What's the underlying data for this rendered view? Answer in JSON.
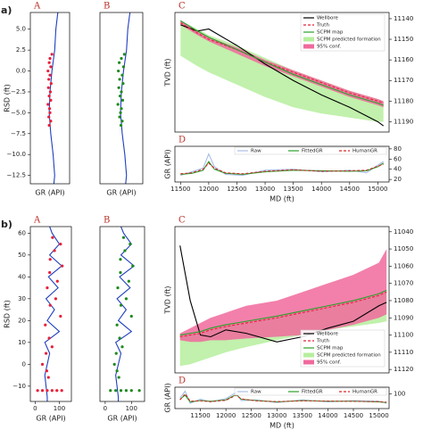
{
  "chart_data": [
    {
      "type": "line",
      "group_label": "a)",
      "panel": "A",
      "xlabel": "GR (API)",
      "ylabel": "RSD (ft)",
      "xlim": [
        0,
        100
      ],
      "ylim": [
        -13.5,
        7
      ],
      "yticks": [
        {
          "value": -12.5,
          "label": "−12.5"
        },
        {
          "value": -10,
          "label": "−10.0"
        },
        {
          "value": -7.5,
          "label": "−7.5"
        },
        {
          "value": -5,
          "label": "−5.0"
        },
        {
          "value": -2.5,
          "label": "−2.5"
        },
        {
          "value": 0,
          "label": "0.0"
        },
        {
          "value": 2.5,
          "label": "2.5"
        },
        {
          "value": 5,
          "label": "5.0"
        }
      ],
      "series": [
        {
          "kind": "line",
          "color": "#1f3fbf",
          "x": [
            70,
            65,
            62,
            55,
            50,
            48,
            52,
            58,
            62,
            60
          ],
          "values": [
            7,
            5,
            2.5,
            0,
            -2.5,
            -5,
            -7.5,
            -10,
            -12.5,
            -13.5
          ]
        },
        {
          "kind": "points",
          "color": "#e8203a",
          "x": [
            55,
            50,
            48,
            52,
            45,
            50,
            47,
            53,
            46,
            51,
            48,
            52,
            45,
            49,
            50,
            47,
            52,
            48
          ],
          "values": [
            2,
            1.5,
            1,
            0.5,
            0,
            -0.5,
            -1,
            -1.5,
            -2,
            -2.5,
            -3,
            -3.5,
            -4,
            -4.5,
            -5,
            -5.5,
            -6,
            -6.5
          ]
        }
      ]
    },
    {
      "type": "line",
      "panel": "B",
      "xlabel": "GR (API)",
      "xlim": [
        0,
        100
      ],
      "ylim": [
        -13.5,
        7
      ],
      "series": [
        {
          "kind": "line",
          "color": "#1f3fbf",
          "x": [
            70,
            65,
            62,
            55,
            50,
            48,
            52,
            58,
            62,
            60
          ],
          "values": [
            7,
            5,
            2.5,
            0,
            -2.5,
            -5,
            -7.5,
            -10,
            -12.5,
            -13.5
          ]
        },
        {
          "kind": "points",
          "color": "#1e8a1e",
          "x": [
            57,
            50,
            45,
            55,
            43,
            52,
            46,
            54,
            44,
            50,
            47,
            53,
            42,
            50,
            48,
            46,
            52,
            49
          ],
          "values": [
            2,
            1.5,
            1,
            0.5,
            0,
            -0.5,
            -1,
            -1.5,
            -2,
            -2.5,
            -3,
            -3.5,
            -4,
            -4.5,
            -5,
            -5.5,
            -6,
            -6.5
          ]
        }
      ]
    },
    {
      "type": "line",
      "panel": "C",
      "ylabel": "TVD (ft)",
      "y_axis_side": "right",
      "y_inverted": true,
      "legend": "upper right",
      "xlim": [
        11400,
        15200
      ],
      "ylim": [
        11137,
        11195
      ],
      "yticks": [
        11140,
        11150,
        11160,
        11170,
        11180,
        11190
      ],
      "x": [
        11500,
        11800,
        12000,
        12500,
        13000,
        13500,
        14000,
        14500,
        15000,
        15100
      ],
      "series": [
        {
          "name": "Wellbore",
          "kind": "line",
          "color": "#000000",
          "values": [
            11143,
            11146,
            11145,
            11153,
            11162,
            11170,
            11177,
            11183,
            11190,
            11192
          ]
        },
        {
          "name": "Truth",
          "kind": "line",
          "dash": true,
          "color": "#e8203a",
          "values": [
            11142,
            11147,
            11150,
            11155,
            11161,
            11166,
            11171,
            11176,
            11180,
            11181
          ]
        },
        {
          "name": "SCPM map",
          "kind": "line",
          "color": "#2ca02c",
          "values": [
            11141,
            11146,
            11149,
            11155,
            11161,
            11167,
            11172,
            11177,
            11181,
            11182
          ]
        },
        {
          "name": "SCPM predicted formation",
          "kind": "band",
          "color": "#b6ef9e",
          "values": [
            11141,
            11145,
            11148,
            11153,
            11159,
            11165,
            11170,
            11175,
            11179,
            11180
          ],
          "lower": [
            11158,
            11163,
            11166,
            11172,
            11178,
            11183,
            11186,
            11188,
            11190,
            11190
          ]
        },
        {
          "name": "95% conf.",
          "kind": "band",
          "color": "#f06a9c",
          "values": [
            11141,
            11146,
            11149,
            11154,
            11160,
            11165,
            11170,
            11175,
            11179,
            11180
          ],
          "lower": [
            11143,
            11148,
            11151,
            11157,
            11163,
            11168,
            11173,
            11178,
            11182,
            11183
          ]
        }
      ]
    },
    {
      "type": "line",
      "panel": "D",
      "ylabel": "GR (API)",
      "xlabel": "MD (ft)",
      "y_axis_side": "right",
      "legend": "upper center",
      "xlim": [
        11400,
        15200
      ],
      "ylim": [
        15,
        85
      ],
      "yticks": [
        20,
        40,
        60,
        80
      ],
      "xticks": [
        11500,
        12000,
        12500,
        13000,
        13500,
        14000,
        14500,
        15000
      ],
      "x": [
        11500,
        11700,
        11900,
        12000,
        12100,
        12300,
        12600,
        13000,
        13500,
        14000,
        14500,
        14800,
        15000,
        15100
      ],
      "series": [
        {
          "name": "Raw",
          "kind": "line",
          "color": "#a9bde9",
          "values": [
            28,
            35,
            42,
            70,
            45,
            30,
            28,
            38,
            40,
            35,
            38,
            33,
            48,
            55
          ]
        },
        {
          "name": "FittedGR",
          "kind": "line",
          "color": "#2ca02c",
          "values": [
            30,
            32,
            38,
            55,
            40,
            32,
            30,
            35,
            38,
            37,
            36,
            37,
            45,
            52
          ]
        },
        {
          "name": "HumanGR",
          "kind": "line",
          "dash": true,
          "color": "#d62728",
          "values": [
            31,
            33,
            40,
            52,
            42,
            33,
            31,
            36,
            39,
            36,
            37,
            38,
            46,
            50
          ]
        }
      ]
    },
    {
      "type": "line",
      "group_label": "b)",
      "panel": "A",
      "xlabel": "GR (API)",
      "ylabel": "RSD (ft)",
      "xlim": [
        -20,
        150
      ],
      "ylim": [
        -17,
        63
      ],
      "xticks": [
        0,
        100
      ],
      "yticks": [
        {
          "value": -10,
          "label": "−10"
        },
        0,
        10,
        20,
        30,
        40,
        50,
        60
      ],
      "series": [
        {
          "kind": "line",
          "color": "#1f3fbf",
          "x": [
            60,
            70,
            100,
            60,
            110,
            55,
            95,
            45,
            80,
            50,
            100,
            40,
            60,
            50,
            40,
            45,
            50,
            50
          ],
          "values": [
            63,
            60,
            55,
            50,
            45,
            40,
            35,
            30,
            25,
            20,
            15,
            10,
            5,
            0,
            -5,
            -10,
            -15,
            -17
          ]
        },
        {
          "kind": "points",
          "color": "#e8203a",
          "x": [
            72,
            105,
            80,
            62,
            112,
            60,
            92,
            50,
            85,
            62,
            105,
            42,
            58,
            70,
            45,
            30,
            48,
            55,
            10,
            30,
            50,
            70,
            90,
            110
          ],
          "values": [
            58,
            55,
            52,
            48,
            45,
            42,
            38,
            35,
            30,
            27,
            22,
            18,
            12,
            8,
            5,
            0,
            -3,
            -6,
            -12,
            -12,
            -12,
            -12,
            -12,
            -12
          ]
        }
      ]
    },
    {
      "type": "line",
      "panel": "B",
      "xlabel": "GR (API)",
      "xlim": [
        -20,
        150
      ],
      "ylim": [
        -17,
        63
      ],
      "xticks": [
        0,
        100
      ],
      "series": [
        {
          "kind": "line",
          "color": "#1f3fbf",
          "x": [
            60,
            70,
            100,
            60,
            110,
            55,
            95,
            45,
            80,
            50,
            100,
            40,
            60,
            50,
            40,
            45,
            50,
            50
          ],
          "values": [
            63,
            60,
            55,
            50,
            45,
            40,
            35,
            30,
            25,
            20,
            15,
            10,
            5,
            0,
            -5,
            -10,
            -15,
            -17
          ]
        },
        {
          "kind": "points",
          "color": "#1e8a1e",
          "x": [
            70,
            95,
            75,
            58,
            105,
            58,
            90,
            48,
            80,
            60,
            100,
            45,
            55,
            65,
            42,
            35,
            45,
            52,
            20,
            40,
            60,
            80,
            100,
            130
          ],
          "values": [
            58,
            55,
            52,
            48,
            45,
            42,
            38,
            35,
            30,
            27,
            22,
            18,
            12,
            8,
            5,
            0,
            -3,
            -6,
            -12,
            -12,
            -12,
            -12,
            -12,
            -12
          ]
        }
      ]
    },
    {
      "type": "line",
      "panel": "C",
      "ylabel": "TVD (ft)",
      "y_axis_side": "right",
      "y_inverted": true,
      "legend": "lower right",
      "xlim": [
        11000,
        15200
      ],
      "ylim": [
        11037,
        11122
      ],
      "yticks": [
        11040,
        11050,
        11060,
        11070,
        11080,
        11090,
        11100,
        11110,
        11120
      ],
      "x": [
        11100,
        11300,
        11500,
        11700,
        12000,
        12400,
        13000,
        13500,
        14000,
        14500,
        15000,
        15150
      ],
      "series": [
        {
          "name": "Wellbore",
          "kind": "line",
          "color": "#000000",
          "values": [
            11048,
            11080,
            11100,
            11101,
            11097,
            11099,
            11104,
            11101,
            11096,
            11092,
            11083,
            11081
          ]
        },
        {
          "name": "Truth",
          "kind": "line",
          "dash": true,
          "color": "#e8203a",
          "values": [
            11101,
            11100,
            11099,
            11097,
            11095,
            11093,
            11090,
            11087,
            11084,
            11081,
            11077,
            11075
          ]
        },
        {
          "name": "SCPM map",
          "kind": "line",
          "color": "#2ca02c",
          "values": [
            11100,
            11099,
            11098,
            11096,
            11094,
            11092,
            11089,
            11086,
            11083,
            11080,
            11076,
            11074
          ]
        },
        {
          "name": "SCPM predicted formation",
          "kind": "band",
          "color": "#b6ef9e",
          "values": [
            11100,
            11099,
            11098,
            11096,
            11094,
            11092,
            11089,
            11086,
            11083,
            11080,
            11076,
            11074
          ],
          "lower": [
            11118,
            11117,
            11115,
            11113,
            11110,
            11107,
            11103,
            11100,
            11097,
            11095,
            11093,
            11092
          ]
        },
        {
          "name": "95% conf.",
          "kind": "band",
          "color": "#f06a9c",
          "values": [
            11099,
            11096,
            11093,
            11090,
            11087,
            11083,
            11080,
            11075,
            11070,
            11065,
            11058,
            11050
          ],
          "lower": [
            11103,
            11104,
            11104,
            11103,
            11103,
            11102,
            11101,
            11100,
            11097,
            11094,
            11090,
            11088
          ]
        }
      ]
    },
    {
      "type": "line",
      "panel": "D",
      "ylabel": "GR (API)",
      "xlabel": "MD (ft)",
      "y_axis_side": "right",
      "legend": "upper center",
      "xlim": [
        11000,
        15200
      ],
      "ylim": [
        -10,
        150
      ],
      "yticks": [
        100
      ],
      "xticks": [
        11500,
        12000,
        12500,
        13000,
        13500,
        14000,
        14500,
        15000
      ],
      "x": [
        11100,
        11200,
        11300,
        11500,
        11700,
        12000,
        12200,
        12300,
        12600,
        13000,
        13500,
        14000,
        14500,
        15000,
        15150
      ],
      "series": [
        {
          "name": "Raw",
          "kind": "line",
          "color": "#a9bde9",
          "values": [
            70,
            120,
            30,
            60,
            40,
            65,
            110,
            50,
            55,
            35,
            55,
            40,
            50,
            45,
            30
          ]
        },
        {
          "name": "FittedGR",
          "kind": "line",
          "color": "#2ca02c",
          "values": [
            60,
            90,
            40,
            50,
            45,
            55,
            95,
            60,
            50,
            40,
            50,
            45,
            45,
            40,
            35
          ]
        },
        {
          "name": "HumanGR",
          "kind": "line",
          "dash": true,
          "color": "#d62728",
          "values": [
            55,
            100,
            45,
            48,
            42,
            52,
            90,
            62,
            48,
            42,
            48,
            46,
            44,
            42,
            38
          ]
        }
      ]
    }
  ]
}
